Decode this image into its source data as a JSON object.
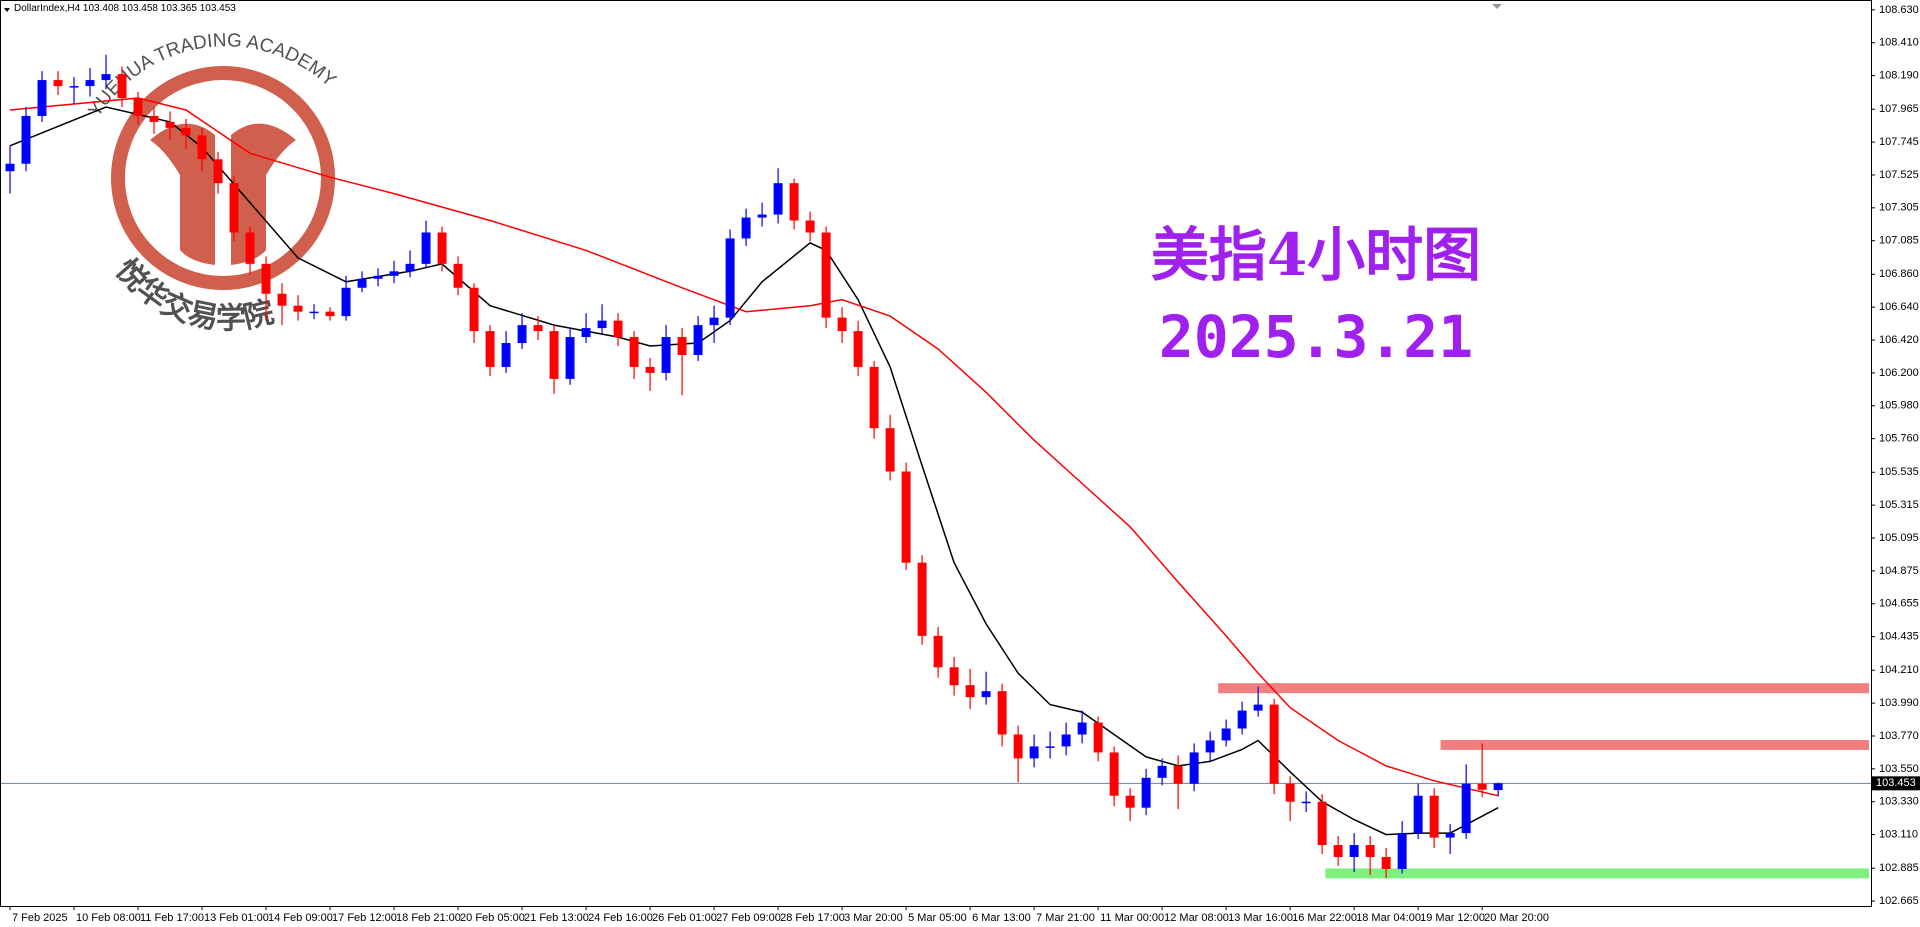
{
  "chart_data": {
    "type": "candlestick",
    "header": "DollarIndex,H4  103.408 103.458 103.365 103.453",
    "title": "美指4小时图",
    "subtitle": "2025.3.21",
    "watermark": {
      "arc_text": "YUEHUA TRADING ACADEMY",
      "cn_text": "悦华交易学院"
    },
    "up_color": "#0000ff",
    "down_color": "#ff0000",
    "grid": false,
    "xlim": [
      -0.625,
      116.3
    ],
    "xticks": [
      {
        "value": 0,
        "label": "7 Feb 2025"
      },
      {
        "value": 4,
        "label": "10 Feb 08:00"
      },
      {
        "value": 8,
        "label": "11 Feb 17:00"
      },
      {
        "value": 12,
        "label": "13 Feb 01:00"
      },
      {
        "value": 16,
        "label": "14 Feb 09:00"
      },
      {
        "value": 20,
        "label": "17 Feb 12:00"
      },
      {
        "value": 24,
        "label": "18 Feb 21:00"
      },
      {
        "value": 28,
        "label": "20 Feb 05:00"
      },
      {
        "value": 32,
        "label": "21 Feb 13:00"
      },
      {
        "value": 36,
        "label": "24 Feb 16:00"
      },
      {
        "value": 40,
        "label": "26 Feb 01:00"
      },
      {
        "value": 44,
        "label": "27 Feb 09:00"
      },
      {
        "value": 48,
        "label": "28 Feb 17:00"
      },
      {
        "value": 52,
        "label": "3 Mar 20:00"
      },
      {
        "value": 56,
        "label": "5 Mar 05:00"
      },
      {
        "value": 60,
        "label": "6 Mar 13:00"
      },
      {
        "value": 64,
        "label": "7 Mar 21:00"
      },
      {
        "value": 68,
        "label": "11 Mar 00:00"
      },
      {
        "value": 72,
        "label": "12 Mar 08:00"
      },
      {
        "value": 76,
        "label": "13 Mar 16:00"
      },
      {
        "value": 80,
        "label": "16 Mar 22:00"
      },
      {
        "value": 84,
        "label": "18 Mar 04:00"
      },
      {
        "value": 88,
        "label": "19 Mar 12:00"
      },
      {
        "value": 92,
        "label": "20 Mar 20:00"
      }
    ],
    "ylim": [
      102.632,
      108.696
    ],
    "yticks": [
      {
        "value": 108.63,
        "label": "108.630"
      },
      {
        "value": 108.41,
        "label": "108.410"
      },
      {
        "value": 108.19,
        "label": "108.190"
      },
      {
        "value": 107.965,
        "label": "107.965"
      },
      {
        "value": 107.745,
        "label": "107.745"
      },
      {
        "value": 107.525,
        "label": "107.525"
      },
      {
        "value": 107.305,
        "label": "107.305"
      },
      {
        "value": 107.085,
        "label": "107.085"
      },
      {
        "value": 106.86,
        "label": "106.860"
      },
      {
        "value": 106.64,
        "label": "106.640"
      },
      {
        "value": 106.42,
        "label": "106.420"
      },
      {
        "value": 106.2,
        "label": "106.200"
      },
      {
        "value": 105.98,
        "label": "105.980"
      },
      {
        "value": 105.76,
        "label": "105.760"
      },
      {
        "value": 105.535,
        "label": "105.535"
      },
      {
        "value": 105.315,
        "label": "105.315"
      },
      {
        "value": 105.095,
        "label": "105.095"
      },
      {
        "value": 104.875,
        "label": "104.875"
      },
      {
        "value": 104.655,
        "label": "104.655"
      },
      {
        "value": 104.435,
        "label": "104.435"
      },
      {
        "value": 104.21,
        "label": "104.210"
      },
      {
        "value": 103.99,
        "label": "103.990"
      },
      {
        "value": 103.77,
        "label": "103.770"
      },
      {
        "value": 103.55,
        "label": "103.550"
      },
      {
        "value": 103.33,
        "label": "103.330"
      },
      {
        "value": 103.11,
        "label": "103.110"
      },
      {
        "value": 102.885,
        "label": "102.885"
      },
      {
        "value": 102.665,
        "label": "102.665"
      }
    ],
    "last_price": {
      "value": 103.453,
      "label": "103.453"
    },
    "candles": [
      [
        107.55,
        107.72,
        107.4,
        107.6
      ],
      [
        107.6,
        107.98,
        107.55,
        107.92
      ],
      [
        107.92,
        108.22,
        107.88,
        108.16
      ],
      [
        108.16,
        108.22,
        108.06,
        108.12
      ],
      [
        108.12,
        108.18,
        108.0,
        108.12
      ],
      [
        108.12,
        108.24,
        108.05,
        108.16
      ],
      [
        108.16,
        108.33,
        108.1,
        108.2
      ],
      [
        108.2,
        108.25,
        107.98,
        108.04
      ],
      [
        108.04,
        108.08,
        107.86,
        107.92
      ],
      [
        107.92,
        107.98,
        107.8,
        107.88
      ],
      [
        107.88,
        107.95,
        107.76,
        107.84
      ],
      [
        107.84,
        107.9,
        107.7,
        107.79
      ],
      [
        107.79,
        107.84,
        107.55,
        107.63
      ],
      [
        107.63,
        107.68,
        107.4,
        107.47
      ],
      [
        107.47,
        107.52,
        107.08,
        107.14
      ],
      [
        107.14,
        107.18,
        106.86,
        106.93
      ],
      [
        106.93,
        106.98,
        106.55,
        106.73
      ],
      [
        106.73,
        106.8,
        106.52,
        106.65
      ],
      [
        106.65,
        106.72,
        106.55,
        106.61
      ],
      [
        106.61,
        106.66,
        106.56,
        106.61
      ],
      [
        106.61,
        106.64,
        106.55,
        106.58
      ],
      [
        106.58,
        106.85,
        106.55,
        106.77
      ],
      [
        106.77,
        106.88,
        106.74,
        106.83
      ],
      [
        106.83,
        106.9,
        106.78,
        106.85
      ],
      [
        106.85,
        106.95,
        106.8,
        106.88
      ],
      [
        106.88,
        107.02,
        106.84,
        106.93
      ],
      [
        106.93,
        107.22,
        106.9,
        107.14
      ],
      [
        107.14,
        107.18,
        106.88,
        106.93
      ],
      [
        106.93,
        106.98,
        106.72,
        106.77
      ],
      [
        106.77,
        106.8,
        106.4,
        106.48
      ],
      [
        106.48,
        106.52,
        106.18,
        106.24
      ],
      [
        106.24,
        106.48,
        106.2,
        106.4
      ],
      [
        106.4,
        106.6,
        106.36,
        106.52
      ],
      [
        106.52,
        106.58,
        106.42,
        106.48
      ],
      [
        106.48,
        106.52,
        106.06,
        106.16
      ],
      [
        106.16,
        106.5,
        106.12,
        106.44
      ],
      [
        106.44,
        106.6,
        106.4,
        106.5
      ],
      [
        106.5,
        106.66,
        106.46,
        106.55
      ],
      [
        106.55,
        106.6,
        106.38,
        106.44
      ],
      [
        106.44,
        106.48,
        106.16,
        106.24
      ],
      [
        106.24,
        106.3,
        106.08,
        106.2
      ],
      [
        106.2,
        106.52,
        106.15,
        106.44
      ],
      [
        106.44,
        106.5,
        106.05,
        106.32
      ],
      [
        106.32,
        106.58,
        106.28,
        106.52
      ],
      [
        106.52,
        106.65,
        106.4,
        106.57
      ],
      [
        106.57,
        107.16,
        106.52,
        107.1
      ],
      [
        107.1,
        107.3,
        107.05,
        107.24
      ],
      [
        107.24,
        107.34,
        107.18,
        107.26
      ],
      [
        107.26,
        107.57,
        107.2,
        107.47
      ],
      [
        107.47,
        107.5,
        107.16,
        107.22
      ],
      [
        107.22,
        107.28,
        107.08,
        107.14
      ],
      [
        107.14,
        107.18,
        106.5,
        106.57
      ],
      [
        106.57,
        106.64,
        106.4,
        106.48
      ],
      [
        106.48,
        106.55,
        106.18,
        106.24
      ],
      [
        106.24,
        106.28,
        105.76,
        105.83
      ],
      [
        105.83,
        105.92,
        105.48,
        105.54
      ],
      [
        105.54,
        105.6,
        104.88,
        104.93
      ],
      [
        104.93,
        104.98,
        104.38,
        104.44
      ],
      [
        104.44,
        104.5,
        104.16,
        104.23
      ],
      [
        104.23,
        104.3,
        104.04,
        104.11
      ],
      [
        104.11,
        104.22,
        103.95,
        104.03
      ],
      [
        104.03,
        104.2,
        103.98,
        104.07
      ],
      [
        104.07,
        104.12,
        103.7,
        103.78
      ],
      [
        103.78,
        103.84,
        103.46,
        103.62
      ],
      [
        103.62,
        103.78,
        103.56,
        103.7
      ],
      [
        103.7,
        103.8,
        103.62,
        103.7
      ],
      [
        103.7,
        103.86,
        103.64,
        103.78
      ],
      [
        103.78,
        103.94,
        103.72,
        103.86
      ],
      [
        103.86,
        103.9,
        103.6,
        103.66
      ],
      [
        103.66,
        103.7,
        103.3,
        103.37
      ],
      [
        103.37,
        103.42,
        103.2,
        103.29
      ],
      [
        103.29,
        103.55,
        103.24,
        103.49
      ],
      [
        103.49,
        103.62,
        103.44,
        103.57
      ],
      [
        103.57,
        103.64,
        103.28,
        103.45
      ],
      [
        103.45,
        103.72,
        103.4,
        103.66
      ],
      [
        103.66,
        103.8,
        103.6,
        103.74
      ],
      [
        103.74,
        103.88,
        103.7,
        103.82
      ],
      [
        103.82,
        104.0,
        103.78,
        103.94
      ],
      [
        103.94,
        104.1,
        103.9,
        103.98
      ],
      [
        103.98,
        104.02,
        103.38,
        103.45
      ],
      [
        103.45,
        103.5,
        103.2,
        103.33
      ],
      [
        103.33,
        103.4,
        103.26,
        103.33
      ],
      [
        103.33,
        103.38,
        102.98,
        103.04
      ],
      [
        103.04,
        103.1,
        102.9,
        102.96
      ],
      [
        102.96,
        103.12,
        102.86,
        103.04
      ],
      [
        103.04,
        103.1,
        102.84,
        102.96
      ],
      [
        102.96,
        103.02,
        102.82,
        102.88
      ],
      [
        102.88,
        103.2,
        102.85,
        103.12
      ],
      [
        103.12,
        103.45,
        103.08,
        103.37
      ],
      [
        103.37,
        103.42,
        103.02,
        103.09
      ],
      [
        103.09,
        103.18,
        102.98,
        103.12
      ],
      [
        103.12,
        103.58,
        103.08,
        103.45
      ],
      [
        103.45,
        103.72,
        103.36,
        103.41
      ],
      [
        103.408,
        103.458,
        103.365,
        103.453
      ]
    ],
    "lines": [
      {
        "color": "#000000",
        "x": [
          0,
          6,
          10,
          12,
          15,
          18,
          21,
          25,
          27,
          30,
          34,
          38,
          40,
          43,
          45,
          47,
          50,
          51,
          53,
          55,
          57,
          59,
          61,
          63,
          65,
          67,
          69,
          71,
          73,
          75,
          77,
          78,
          80,
          82,
          84,
          86,
          88,
          90,
          93
        ],
        "values": [
          107.72,
          107.98,
          107.88,
          107.71,
          107.34,
          106.97,
          106.81,
          106.88,
          106.93,
          106.65,
          106.52,
          106.44,
          106.38,
          106.4,
          106.55,
          106.81,
          107.07,
          107.02,
          106.69,
          106.24,
          105.58,
          104.93,
          104.52,
          104.19,
          103.98,
          103.93,
          103.78,
          103.63,
          103.57,
          103.6,
          103.68,
          103.74,
          103.53,
          103.33,
          103.21,
          103.11,
          103.12,
          103.12,
          103.29
        ]
      },
      {
        "color": "#ff0000",
        "x": [
          0,
          4,
          8,
          11,
          15,
          20,
          24,
          30,
          36,
          42,
          46,
          50,
          52,
          55,
          58,
          61,
          64,
          67,
          70,
          73,
          76,
          78,
          80,
          83,
          86,
          89,
          93
        ],
        "values": [
          107.96,
          108.0,
          108.04,
          107.96,
          107.67,
          107.51,
          107.4,
          107.22,
          107.02,
          106.77,
          106.61,
          106.65,
          106.69,
          106.58,
          106.36,
          106.07,
          105.75,
          105.46,
          105.17,
          104.8,
          104.44,
          104.19,
          103.96,
          103.74,
          103.57,
          103.47,
          103.37
        ]
      }
    ],
    "zones": [
      {
        "color": "#f08080",
        "level": 104.09,
        "x0": 75.5
      },
      {
        "color": "#f08080",
        "level": 103.71,
        "x0": 89.4
      },
      {
        "color": "#80ee80",
        "level": 102.85,
        "x0": 82.2
      }
    ]
  }
}
